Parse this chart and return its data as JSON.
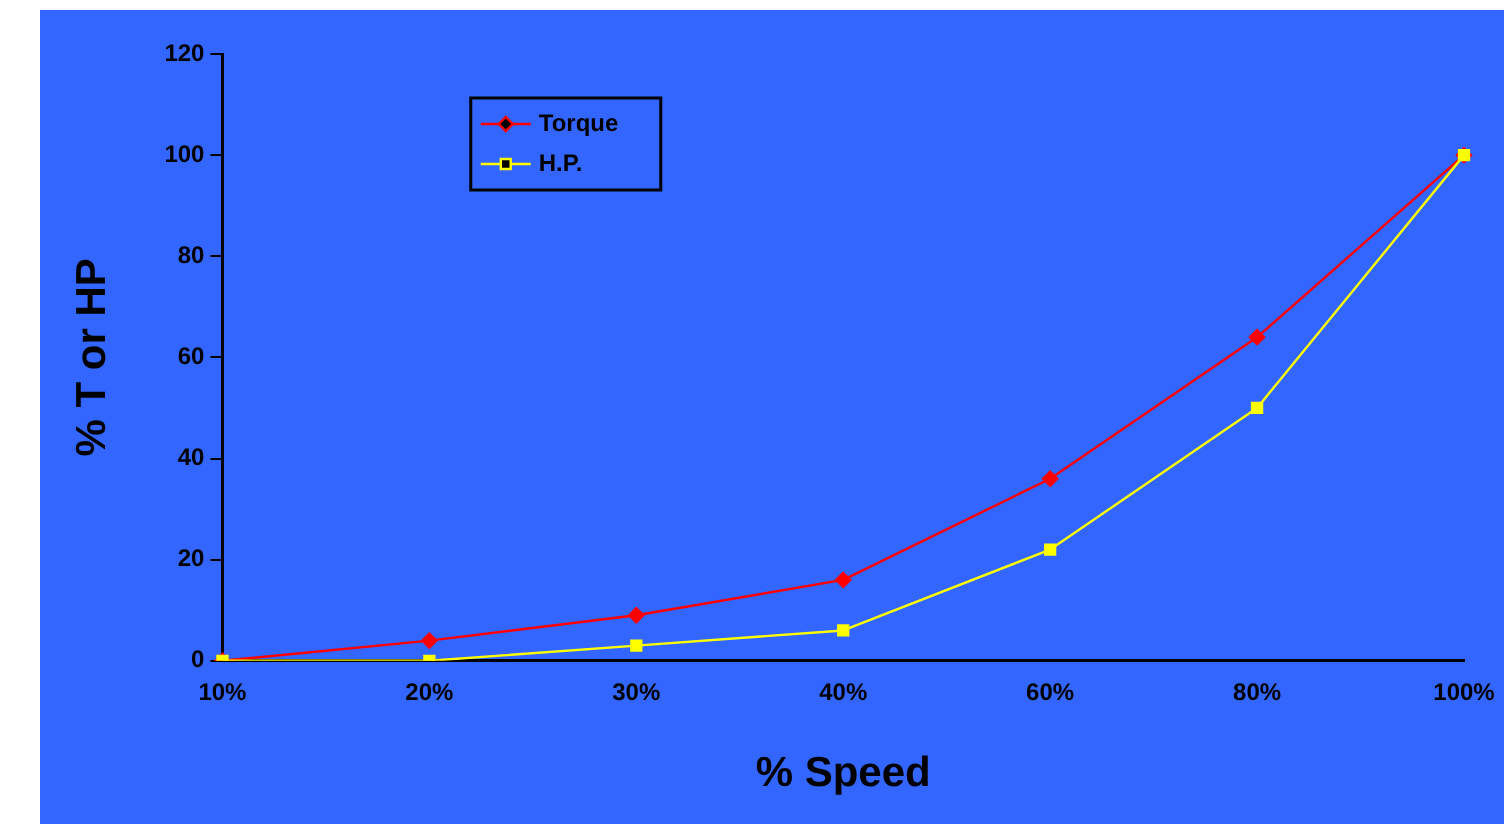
{
  "chart_data": {
    "type": "line",
    "xlabel": "% Speed",
    "ylabel": "% T or HP",
    "categories": [
      "10%",
      "20%",
      "30%",
      "40%",
      "60%",
      "80%",
      "100%"
    ],
    "series": [
      {
        "name": "Torque",
        "color": "#ff0000",
        "marker": "diamond",
        "values": [
          0,
          4,
          9,
          16,
          36,
          64,
          100
        ]
      },
      {
        "name": "H.P.",
        "color": "#ffff00",
        "marker": "square",
        "values": [
          0,
          0,
          3,
          6,
          22,
          50,
          100
        ]
      }
    ],
    "ylim": [
      0,
      120
    ],
    "yticks": [
      0,
      20,
      40,
      60,
      80,
      100,
      120
    ],
    "grid": false,
    "legend": "top left"
  }
}
